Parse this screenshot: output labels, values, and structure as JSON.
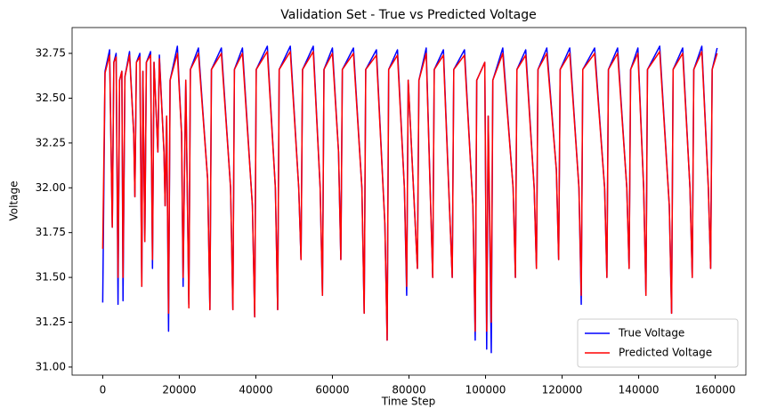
{
  "chart_data": {
    "type": "line",
    "title": "Validation Set - True vs Predicted Voltage",
    "x_label": "Time Step",
    "y_label": "Voltage",
    "xlim": [
      -8000,
      168000
    ],
    "ylim": [
      30.955,
      32.894
    ],
    "xticks": [
      0,
      20000,
      40000,
      60000,
      80000,
      100000,
      120000,
      140000,
      160000
    ],
    "yticks": [
      {
        "value": 31.0,
        "label": "31.00"
      },
      31.25,
      {
        "value": 31.5,
        "label": "31.50"
      },
      31.75,
      {
        "value": 32.0,
        "label": "32.00"
      },
      32.25,
      {
        "value": 32.5,
        "label": "32.50"
      },
      32.75
    ],
    "legend_position": "lower right",
    "x": [
      0,
      600,
      1800,
      2200,
      2500,
      2900,
      3500,
      4000,
      4400,
      5000,
      5300,
      5800,
      7000,
      8100,
      8400,
      8800,
      9700,
      10200,
      10500,
      11000,
      11400,
      12500,
      13000,
      13400,
      14400,
      14800,
      16000,
      16300,
      16700,
      17200,
      17600,
      19500,
      20600,
      21000,
      21300,
      21700,
      22500,
      22900,
      25000,
      27400,
      28000,
      28400,
      31000,
      33400,
      34000,
      34400,
      36500,
      39100,
      39700,
      40100,
      43000,
      45100,
      45700,
      46100,
      49000,
      51200,
      51800,
      52200,
      55000,
      56800,
      57400,
      57800,
      60000,
      61600,
      62200,
      62600,
      65500,
      67700,
      68300,
      68700,
      71500,
      73700,
      74300,
      74700,
      77000,
      78800,
      79400,
      79800,
      82200,
      82600,
      84500,
      86200,
      86600,
      89000,
      91300,
      91700,
      94500,
      96700,
      97300,
      97700,
      99800,
      100300,
      100700,
      101500,
      101900,
      104500,
      107200,
      107800,
      108200,
      110500,
      112700,
      113300,
      113700,
      116000,
      118500,
      119100,
      119500,
      122000,
      124400,
      125000,
      125400,
      128500,
      131100,
      131700,
      132100,
      134500,
      136900,
      137500,
      137900,
      139800,
      141300,
      141900,
      142300,
      145500,
      148000,
      148600,
      149000,
      151500,
      153400,
      154000,
      154400,
      156500,
      158200,
      158800,
      159200,
      160500
    ],
    "series": [
      {
        "name": "True Voltage",
        "color": "#0000ff",
        "values": [
          31.36,
          32.65,
          32.77,
          32.2,
          31.78,
          32.7,
          32.75,
          31.35,
          32.6,
          32.65,
          31.37,
          32.62,
          32.76,
          32.3,
          31.95,
          32.7,
          32.75,
          31.45,
          32.65,
          31.7,
          32.7,
          32.76,
          31.55,
          32.7,
          32.2,
          32.74,
          32.2,
          31.9,
          32.4,
          31.2,
          32.6,
          32.79,
          32.3,
          31.45,
          32.0,
          32.6,
          31.35,
          32.66,
          32.78,
          32.05,
          31.32,
          32.66,
          32.78,
          32.0,
          31.32,
          32.66,
          32.78,
          31.9,
          31.28,
          32.66,
          32.79,
          32.0,
          31.32,
          32.66,
          32.79,
          32.0,
          31.6,
          32.66,
          32.79,
          32.0,
          31.4,
          32.66,
          32.78,
          32.2,
          31.6,
          32.66,
          32.78,
          32.0,
          31.3,
          32.66,
          32.77,
          31.8,
          31.15,
          32.66,
          32.77,
          32.0,
          31.4,
          32.6,
          31.55,
          32.6,
          32.78,
          31.5,
          32.66,
          32.77,
          31.5,
          32.66,
          32.77,
          31.9,
          31.15,
          32.6,
          32.7,
          31.1,
          32.4,
          31.08,
          32.6,
          32.78,
          32.0,
          31.5,
          32.66,
          32.77,
          32.0,
          31.55,
          32.66,
          32.78,
          32.1,
          31.6,
          32.66,
          32.78,
          32.0,
          31.35,
          32.66,
          32.78,
          32.0,
          31.5,
          32.66,
          32.78,
          32.0,
          31.55,
          32.66,
          32.78,
          32.0,
          31.4,
          32.66,
          32.79,
          31.9,
          31.3,
          32.66,
          32.78,
          32.0,
          31.5,
          32.66,
          32.79,
          32.0,
          31.55,
          32.66,
          32.78
        ]
      },
      {
        "name": "Predicted Voltage",
        "color": "#ff0000",
        "values": [
          31.66,
          32.64,
          32.74,
          32.2,
          31.78,
          32.7,
          32.73,
          31.5,
          32.6,
          32.65,
          31.5,
          32.62,
          32.74,
          32.3,
          31.95,
          32.7,
          32.73,
          31.45,
          32.65,
          31.7,
          32.7,
          32.74,
          31.6,
          32.7,
          32.2,
          32.72,
          32.2,
          31.9,
          32.4,
          31.3,
          32.6,
          32.75,
          32.3,
          31.5,
          32.0,
          32.6,
          31.33,
          32.66,
          32.75,
          32.05,
          31.32,
          32.66,
          32.75,
          32.0,
          31.32,
          32.66,
          32.75,
          31.9,
          31.28,
          32.66,
          32.76,
          32.0,
          31.32,
          32.66,
          32.76,
          32.0,
          31.6,
          32.66,
          32.76,
          32.0,
          31.4,
          32.66,
          32.75,
          32.2,
          31.6,
          32.66,
          32.75,
          32.0,
          31.3,
          32.66,
          32.74,
          31.8,
          31.15,
          32.66,
          32.74,
          32.0,
          31.45,
          32.6,
          31.55,
          32.6,
          32.75,
          31.5,
          32.66,
          32.74,
          31.5,
          32.66,
          32.74,
          31.9,
          31.2,
          32.6,
          32.7,
          31.2,
          32.4,
          31.25,
          32.6,
          32.75,
          32.0,
          31.5,
          32.66,
          32.74,
          32.0,
          31.55,
          32.66,
          32.75,
          32.1,
          31.6,
          32.66,
          32.75,
          32.0,
          31.4,
          32.66,
          32.75,
          32.0,
          31.5,
          32.66,
          32.75,
          32.0,
          31.55,
          32.66,
          32.75,
          32.0,
          31.4,
          32.66,
          32.76,
          31.9,
          31.3,
          32.66,
          32.75,
          32.0,
          31.5,
          32.66,
          32.76,
          32.0,
          31.55,
          32.66,
          32.75
        ]
      }
    ]
  }
}
